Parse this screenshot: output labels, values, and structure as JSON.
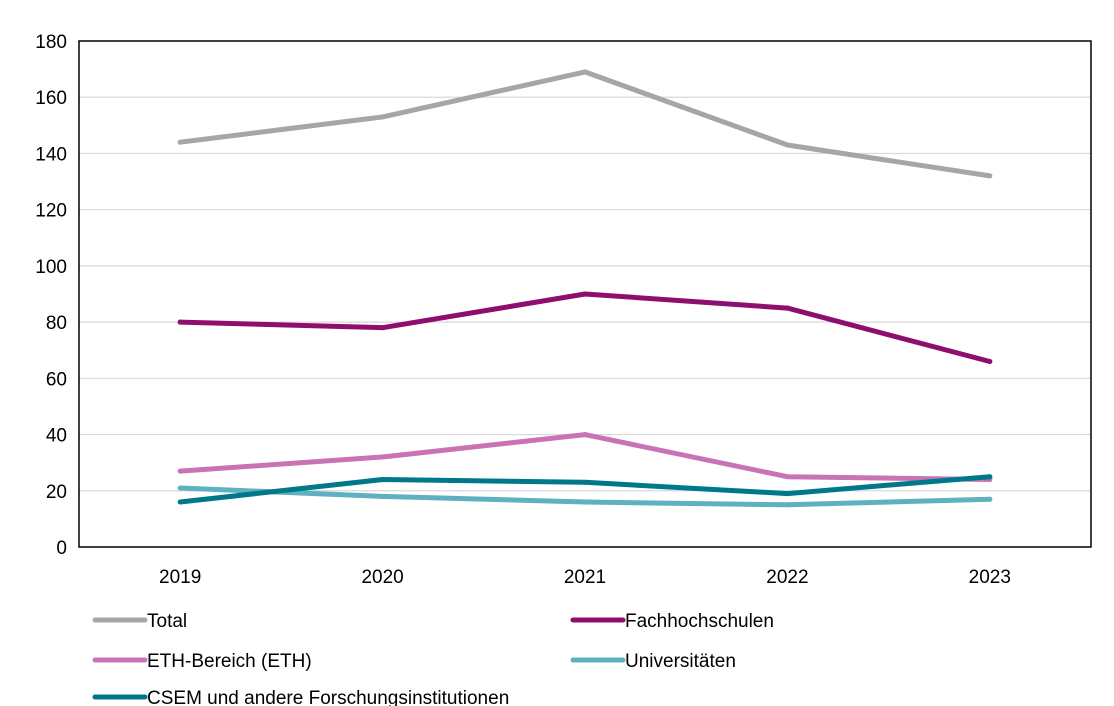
{
  "chart_data": {
    "type": "line",
    "title": "",
    "xlabel": "",
    "ylabel": "",
    "x": [
      "2019",
      "2020",
      "2021",
      "2022",
      "2023"
    ],
    "ylim": [
      0,
      180
    ],
    "yticks": [
      "0",
      "20",
      "40",
      "60",
      "80",
      "100",
      "120",
      "140",
      "160",
      "180"
    ],
    "grid": true,
    "legend": "bottom",
    "series": [
      {
        "name": "Total",
        "color": "#a6a6a6",
        "values": [
          144,
          153,
          169,
          143,
          132
        ]
      },
      {
        "name": "Fachhochschulen",
        "color": "#8e0e6e",
        "values": [
          80,
          78,
          90,
          85,
          66
        ]
      },
      {
        "name": "ETH-Bereich (ETH)",
        "color": "#c873b3",
        "values": [
          27,
          32,
          40,
          25,
          24
        ]
      },
      {
        "name": "Universitäten",
        "color": "#5fb0c0",
        "values": [
          21,
          18,
          16,
          15,
          17
        ]
      },
      {
        "name": "CSEM und andere Forschungsinstitutionen",
        "color": "#00788a",
        "values": [
          16,
          24,
          23,
          19,
          25
        ]
      }
    ]
  }
}
